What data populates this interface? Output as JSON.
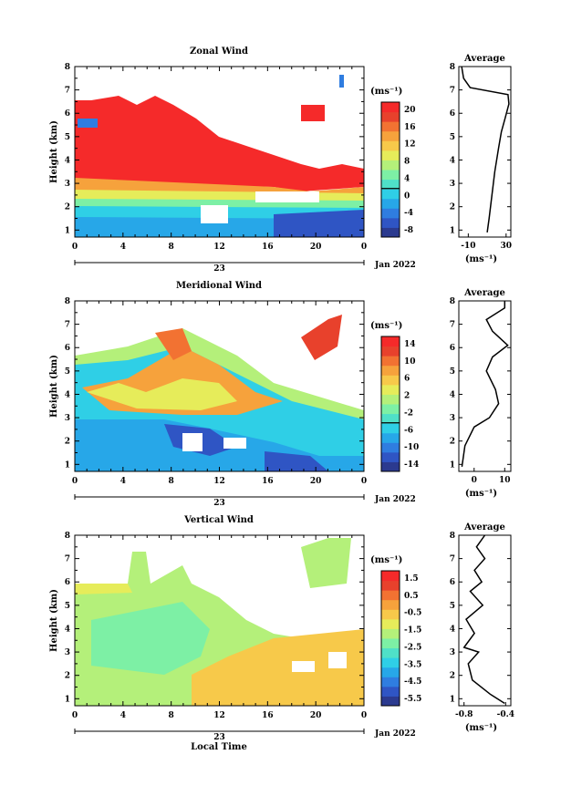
{
  "colors": {
    "palette": [
      "#2b3a8f",
      "#2f55c4",
      "#2f7de0",
      "#27a7e8",
      "#2fcfe6",
      "#4fe0c8",
      "#7df0a5",
      "#b4f07a",
      "#e6ec5a",
      "#f7c94a",
      "#f6a23c",
      "#f27232",
      "#e8412c",
      "#f52a2a"
    ],
    "colorbar_marker_line": "#000000"
  },
  "chart_data": [
    {
      "type": "heatmap",
      "title": "Zonal Wind",
      "ylabel": "Height (km)",
      "ylim": [
        0.7,
        8.0
      ],
      "xlim": [
        0,
        24
      ],
      "x_ticks": [
        "0",
        "4",
        "8",
        "12",
        "16",
        "20",
        "0"
      ],
      "y_ticks": [
        "1",
        "2",
        "3",
        "4",
        "5",
        "6",
        "7",
        "8"
      ],
      "date_label": "23",
      "month_label": "Jan 2022",
      "colorbar": {
        "unit": "(ms⁻¹)",
        "labels": [
          "20",
          "16",
          "12",
          "8",
          "4",
          "0",
          "-4",
          "-8"
        ],
        "zero_line": 0
      },
      "wind_bands": [
        {
          "height_range": [
            3.0,
            5.8
          ],
          "value": 22,
          "hours": [
            0,
            18
          ]
        },
        {
          "height_range": [
            1.5,
            3.0
          ],
          "value": 6,
          "hours": [
            0,
            24
          ]
        },
        {
          "height_range": [
            0.7,
            1.5
          ],
          "value": -6,
          "hours": [
            14,
            24
          ]
        }
      ],
      "average": {
        "title": "Average",
        "xlabel": "(ms⁻¹)",
        "x_ticks": [
          "-10",
          "30"
        ],
        "xlim": [
          -20,
          35
        ],
        "profile": [
          [
            10,
            0.9
          ],
          [
            12,
            1.5
          ],
          [
            15,
            2.5
          ],
          [
            18,
            3.5
          ],
          [
            22,
            4.5
          ],
          [
            25,
            5.2
          ],
          [
            29,
            5.8
          ],
          [
            33,
            6.4
          ],
          [
            32,
            6.8
          ],
          [
            -8,
            7.1
          ],
          [
            -15,
            7.5
          ],
          [
            -17,
            8.0
          ]
        ]
      }
    },
    {
      "type": "heatmap",
      "title": "Meridional Wind",
      "ylabel": "Height (km)",
      "ylim": [
        0.7,
        8.0
      ],
      "xlim": [
        0,
        24
      ],
      "x_ticks": [
        "0",
        "4",
        "8",
        "12",
        "16",
        "20",
        "0"
      ],
      "y_ticks": [
        "1",
        "2",
        "3",
        "4",
        "5",
        "6",
        "7",
        "8"
      ],
      "date_label": "23",
      "month_label": "Jan 2022",
      "colorbar": {
        "unit": "(ms⁻¹)",
        "labels": [
          "14",
          "10",
          "6",
          "2",
          "-2",
          "-6",
          "-10",
          "-14"
        ],
        "zero_line": 0
      },
      "wind_bands": [
        {
          "height_range": [
            3.2,
            5.5
          ],
          "value": 8,
          "hours": [
            0,
            16
          ]
        },
        {
          "height_range": [
            1.0,
            3.2
          ],
          "value": -6,
          "hours": [
            0,
            24
          ]
        },
        {
          "height_range": [
            5.8,
            7.2
          ],
          "value": 14,
          "hours": [
            20,
            23
          ]
        }
      ],
      "average": {
        "title": "Average",
        "xlabel": "(ms⁻¹)",
        "x_ticks": [
          "0",
          "10"
        ],
        "xlim": [
          -5,
          12
        ],
        "profile": [
          [
            -4,
            0.9
          ],
          [
            -3,
            1.8
          ],
          [
            0,
            2.6
          ],
          [
            5,
            3.0
          ],
          [
            8,
            3.6
          ],
          [
            7,
            4.2
          ],
          [
            4,
            5.0
          ],
          [
            6,
            5.6
          ],
          [
            11,
            6.1
          ],
          [
            6,
            6.7
          ],
          [
            4,
            7.2
          ],
          [
            10,
            7.7
          ],
          [
            10,
            8.0
          ]
        ]
      }
    },
    {
      "type": "heatmap",
      "title": "Vertical Wind",
      "ylabel": "Height (km)",
      "xlabel": "Local Time",
      "ylim": [
        0.7,
        8.0
      ],
      "xlim": [
        0,
        24
      ],
      "x_ticks": [
        "0",
        "4",
        "8",
        "12",
        "16",
        "20",
        "0"
      ],
      "y_ticks": [
        "1",
        "2",
        "3",
        "4",
        "5",
        "6",
        "7",
        "8"
      ],
      "date_label": "23",
      "month_label": "Jan 2022",
      "colorbar": {
        "unit": "(ms⁻¹)",
        "labels": [
          "1.5",
          "0.5",
          "-0.5",
          "-1.5",
          "-2.5",
          "-3.5",
          "-4.5",
          "-5.5"
        ]
      },
      "wind_bands": [
        {
          "height_range": [
            0.7,
            6.0
          ],
          "value": -1.5,
          "hours": [
            0,
            10
          ]
        },
        {
          "height_range": [
            0.7,
            3.5
          ],
          "value": 0.5,
          "hours": [
            10,
            24
          ]
        }
      ],
      "average": {
        "title": "Average",
        "xlabel": "(ms⁻¹)",
        "x_ticks": [
          "-0.8",
          "-0.4"
        ],
        "xlim": [
          -0.85,
          -0.35
        ],
        "profile": [
          [
            -0.41,
            0.8
          ],
          [
            -0.55,
            1.2
          ],
          [
            -0.72,
            1.8
          ],
          [
            -0.76,
            2.5
          ],
          [
            -0.66,
            3.0
          ],
          [
            -0.8,
            3.2
          ],
          [
            -0.7,
            3.8
          ],
          [
            -0.78,
            4.4
          ],
          [
            -0.62,
            5.0
          ],
          [
            -0.74,
            5.6
          ],
          [
            -0.63,
            6.0
          ],
          [
            -0.7,
            6.5
          ],
          [
            -0.6,
            7.0
          ],
          [
            -0.68,
            7.5
          ],
          [
            -0.6,
            8.0
          ]
        ]
      }
    }
  ]
}
